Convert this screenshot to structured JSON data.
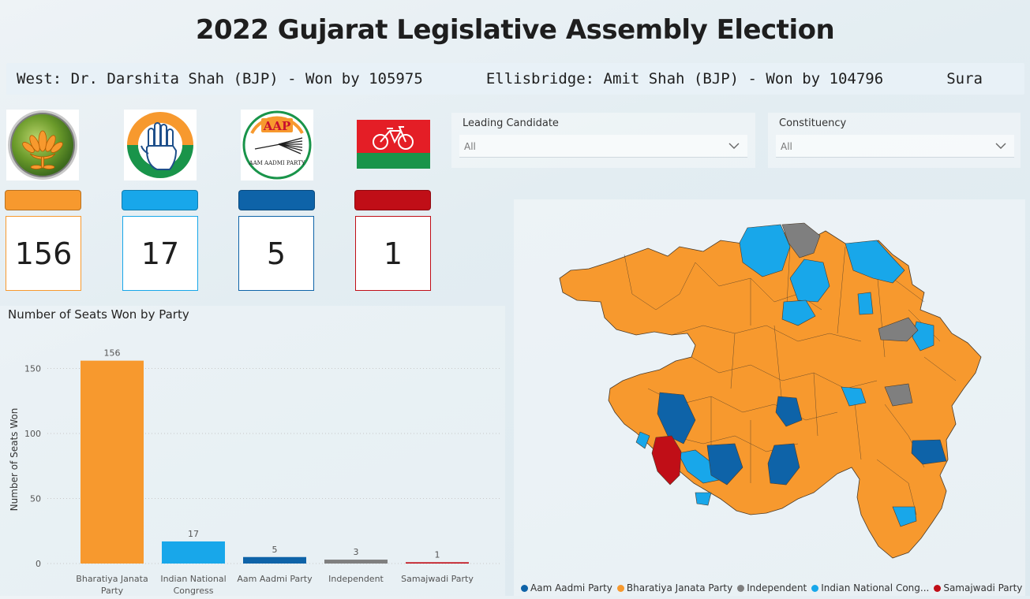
{
  "title": "2022 Gujarat Legislative Assembly Election",
  "ticker": "West: Dr. Darshita Shah (BJP) - Won by 105975       Ellisbridge: Amit Shah (BJP) - Won by 104796       Sura",
  "party_cards": [
    {
      "logo": "bjp-lotus-logo",
      "color": "#F7992E",
      "seats": "156"
    },
    {
      "logo": "congress-hand-logo",
      "color": "#18A7EA",
      "seats": "17"
    },
    {
      "logo": "aap-broom-logo",
      "color": "#0E63A8",
      "seats": "5"
    },
    {
      "logo": "sp-bicycle-logo",
      "color": "#C00E17",
      "seats": "1"
    }
  ],
  "aap_logo_text": {
    "big": "AAP",
    "small": "AAM AADMI PARTY"
  },
  "filters": {
    "leading_candidate": {
      "label": "Leading Candidate",
      "value": "All"
    },
    "constituency": {
      "label": "Constituency",
      "value": "All"
    }
  },
  "chart_data": {
    "type": "bar",
    "title": "Number of Seats Won by Party",
    "xlabel": "",
    "ylabel": "Number of Seats Won",
    "categories": [
      "Bharatiya Janata Party",
      "Indian National Congress",
      "Aam Aadmi Party",
      "Independent",
      "Samajwadi Party"
    ],
    "values": [
      156,
      17,
      5,
      3,
      1
    ],
    "colors": [
      "#F7992E",
      "#18A7EA",
      "#0E63A8",
      "#7F7F7F",
      "#C00E17"
    ],
    "yticks": [
      0,
      50,
      100,
      150
    ],
    "ylim": [
      0,
      160
    ],
    "grid": true
  },
  "map_legend": [
    {
      "label": "Aam Aadmi Party",
      "color": "#0E63A8"
    },
    {
      "label": "Bharatiya Janata Party",
      "color": "#F7992E"
    },
    {
      "label": "Independent",
      "color": "#7F7F7F"
    },
    {
      "label": "Indian National Cong...",
      "color": "#18A7EA"
    },
    {
      "label": "Samajwadi Party",
      "color": "#C00E17"
    }
  ]
}
